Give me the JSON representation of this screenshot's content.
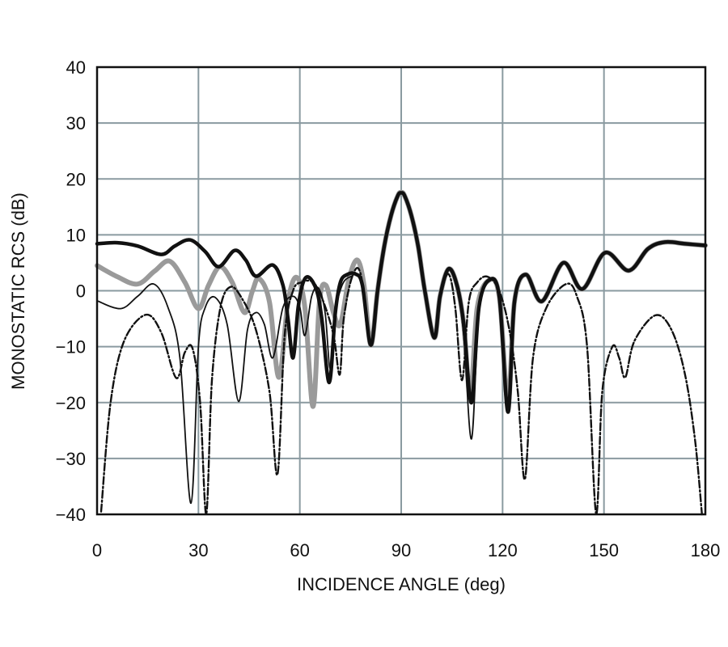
{
  "chart_data": {
    "type": "line",
    "title": "",
    "xlabel": "INCIDENCE ANGLE (deg)",
    "ylabel": "MONOSTATIC RCS (dB)",
    "xlim": [
      0,
      180
    ],
    "ylim": [
      -40,
      40
    ],
    "xticks": [
      0,
      30,
      60,
      90,
      120,
      150,
      180
    ],
    "yticks": [
      40,
      30,
      20,
      10,
      0,
      -10,
      -20,
      -30,
      -40
    ],
    "xtick_labels": [
      "0",
      "30",
      "60",
      "90",
      "120",
      "150",
      "180"
    ],
    "ytick_labels": [
      "40",
      "30",
      "20",
      "10",
      "0",
      "−10",
      "−20",
      "−30",
      "−40"
    ],
    "grid": true,
    "legend": "none",
    "grid_color": "#8a9aa0",
    "series": [
      {
        "style": "thick-solid",
        "color": "#9a9a9a",
        "points": [
          [
            0,
            4.5
          ],
          [
            6,
            2.5
          ],
          [
            12,
            1.2
          ],
          [
            17,
            3.5
          ],
          [
            21.5,
            5.3
          ],
          [
            26,
            1.5
          ],
          [
            30,
            -3.2
          ],
          [
            33,
            1
          ],
          [
            36.4,
            4.3
          ],
          [
            40,
            1.5
          ],
          [
            43.6,
            -3.9
          ],
          [
            46,
            0
          ],
          [
            47.9,
            2.2
          ],
          [
            51,
            -2
          ],
          [
            53.8,
            -15.5
          ],
          [
            56.5,
            -2
          ],
          [
            59,
            2.4
          ],
          [
            61.5,
            -3
          ],
          [
            63.9,
            -20.7
          ],
          [
            65.8,
            -2
          ],
          [
            67.7,
            1
          ],
          [
            70,
            -4
          ],
          [
            72,
            -6
          ],
          [
            74.5,
            2
          ],
          [
            77,
            5.5
          ],
          [
            79,
            1
          ],
          [
            81,
            -9.7
          ],
          [
            83,
            0
          ],
          [
            85,
            8
          ],
          [
            87,
            13.5
          ],
          [
            89,
            17
          ],
          [
            90,
            17.6
          ],
          [
            91,
            17
          ],
          [
            93,
            13.5
          ],
          [
            95,
            8
          ],
          [
            97,
            0
          ],
          [
            99.8,
            -8.4
          ],
          [
            101.5,
            -1
          ],
          [
            104,
            3.9
          ],
          [
            106.5,
            1
          ],
          [
            108.5,
            -6
          ],
          [
            110.5,
            -19
          ],
          [
            112.5,
            -3
          ],
          [
            116,
            1.9
          ],
          [
            119,
            -1
          ],
          [
            121.6,
            -20
          ],
          [
            123.5,
            -2
          ],
          [
            126.9,
            2.9
          ],
          [
            131.6,
            -1.9
          ],
          [
            138,
            5
          ],
          [
            143.6,
            0.3
          ],
          [
            150.3,
            6.8
          ],
          [
            157.3,
            3.6
          ],
          [
            163,
            7.5
          ],
          [
            168,
            8.7
          ],
          [
            174,
            8.4
          ],
          [
            180,
            8.1
          ]
        ]
      },
      {
        "style": "thick-solid",
        "color": "#111111",
        "points": [
          [
            0,
            8.4
          ],
          [
            6,
            8.6
          ],
          [
            12,
            8
          ],
          [
            19,
            6.5
          ],
          [
            23,
            8
          ],
          [
            27.5,
            9.1
          ],
          [
            32,
            7
          ],
          [
            36,
            4.3
          ],
          [
            40.7,
            7.2
          ],
          [
            44,
            5.5
          ],
          [
            47,
            2.6
          ],
          [
            52,
            4.6
          ],
          [
            55,
            1
          ],
          [
            56.5,
            -5
          ],
          [
            58,
            -12
          ],
          [
            59.5,
            -3
          ],
          [
            61,
            1.5
          ],
          [
            62.7,
            2.4
          ],
          [
            65,
            0
          ],
          [
            66.5,
            -5
          ],
          [
            68.7,
            -16.4
          ],
          [
            70.5,
            -4
          ],
          [
            72,
            1.5
          ],
          [
            74,
            2.9
          ],
          [
            76.5,
            3
          ],
          [
            78.5,
            1
          ],
          [
            81,
            -9.7
          ],
          [
            83,
            0
          ],
          [
            85,
            8
          ],
          [
            87,
            13.5
          ],
          [
            89,
            17
          ],
          [
            90,
            17.5
          ],
          [
            91,
            17
          ],
          [
            93,
            13.5
          ],
          [
            95,
            8
          ],
          [
            97,
            0
          ],
          [
            99.8,
            -8.4
          ],
          [
            101.5,
            -1
          ],
          [
            104,
            3.9
          ],
          [
            106.5,
            1
          ],
          [
            108.5,
            -6
          ],
          [
            110.8,
            -20
          ],
          [
            113,
            -3
          ],
          [
            116,
            1.9
          ],
          [
            119,
            -1
          ],
          [
            121.6,
            -21.7
          ],
          [
            123.5,
            -2
          ],
          [
            126.9,
            2.9
          ],
          [
            131.6,
            -1.9
          ],
          [
            138,
            5
          ],
          [
            143.6,
            0.3
          ],
          [
            150.3,
            6.8
          ],
          [
            157.3,
            3.6
          ],
          [
            163,
            7.5
          ],
          [
            168,
            8.7
          ],
          [
            174,
            8.4
          ],
          [
            180,
            8.1
          ]
        ]
      },
      {
        "style": "thin-solid",
        "color": "#111111",
        "points": [
          [
            0,
            -1.8
          ],
          [
            7,
            -3.2
          ],
          [
            12,
            -1
          ],
          [
            16.8,
            1.2
          ],
          [
            21,
            -3
          ],
          [
            24.5,
            -12
          ],
          [
            27.8,
            -38
          ],
          [
            30,
            -10
          ],
          [
            32,
            -3
          ],
          [
            35,
            -1.2
          ],
          [
            38.5,
            -6
          ],
          [
            41.9,
            -19.8
          ],
          [
            44.5,
            -7
          ],
          [
            47,
            -3.9
          ],
          [
            49.5,
            -6
          ],
          [
            52,
            -12
          ],
          [
            55,
            -3
          ],
          [
            58,
            -1
          ],
          [
            60,
            -3
          ],
          [
            61.5,
            -8
          ],
          [
            63.5,
            -1
          ],
          [
            65.5,
            0.5
          ],
          [
            67.5,
            -4
          ],
          [
            69,
            -14
          ],
          [
            70.5,
            -4
          ],
          [
            72.5,
            1
          ],
          [
            75,
            2.5
          ],
          [
            78,
            2
          ],
          [
            81,
            -9.7
          ],
          [
            83,
            0
          ],
          [
            85,
            8
          ],
          [
            87,
            13.5
          ],
          [
            89,
            17
          ],
          [
            90,
            17.5
          ],
          [
            91,
            17
          ],
          [
            93,
            13.5
          ],
          [
            95,
            8
          ],
          [
            97,
            0
          ],
          [
            99.8,
            -8.4
          ],
          [
            101.5,
            -1
          ],
          [
            104,
            3.9
          ],
          [
            106.5,
            1
          ],
          [
            108.5,
            -8
          ],
          [
            110.8,
            -26.5
          ],
          [
            113,
            -4
          ],
          [
            116,
            1.9
          ],
          [
            119,
            -1
          ],
          [
            121.6,
            -21.7
          ],
          [
            123.5,
            -2
          ],
          [
            126.9,
            2.9
          ],
          [
            131.6,
            -1.9
          ],
          [
            138,
            5
          ],
          [
            143.6,
            0.3
          ],
          [
            150.3,
            6.8
          ],
          [
            157.3,
            3.6
          ],
          [
            163,
            7.5
          ],
          [
            168,
            8.7
          ],
          [
            174,
            8.4
          ],
          [
            180,
            8.1
          ]
        ]
      },
      {
        "style": "dash-dot",
        "color": "#111111",
        "points": [
          [
            1.2,
            -39.5
          ],
          [
            4,
            -20
          ],
          [
            8,
            -9
          ],
          [
            14.4,
            -4.3
          ],
          [
            19,
            -7.5
          ],
          [
            23.4,
            -15.6
          ],
          [
            26,
            -11
          ],
          [
            28.3,
            -10.4
          ],
          [
            30.5,
            -20
          ],
          [
            32.3,
            -40
          ],
          [
            34,
            -16
          ],
          [
            36.5,
            -3
          ],
          [
            39.5,
            0.7
          ],
          [
            43,
            -1.5
          ],
          [
            47,
            -7
          ],
          [
            51,
            -18
          ],
          [
            53.4,
            -32.8
          ],
          [
            55.5,
            -8
          ],
          [
            58,
            0
          ],
          [
            60.5,
            1.5
          ],
          [
            64,
            1.5
          ],
          [
            67,
            -2
          ],
          [
            70,
            -8
          ],
          [
            71.8,
            -15
          ],
          [
            73,
            -5
          ],
          [
            75.5,
            2.5
          ],
          [
            78,
            3
          ],
          [
            81,
            -9.7
          ],
          [
            83,
            0
          ],
          [
            85,
            8
          ],
          [
            87,
            13.5
          ],
          [
            89,
            17
          ],
          [
            90,
            17.5
          ],
          [
            91,
            17
          ],
          [
            93,
            13.5
          ],
          [
            95,
            8
          ],
          [
            97,
            0
          ],
          [
            99.8,
            -8.4
          ],
          [
            101.5,
            -1
          ],
          [
            104,
            3
          ],
          [
            106,
            -3
          ],
          [
            108,
            -16
          ],
          [
            110,
            -2
          ],
          [
            112.5,
            1.5
          ],
          [
            115.6,
            2.5
          ],
          [
            119,
            0
          ],
          [
            122,
            -7
          ],
          [
            124.5,
            -18
          ],
          [
            126.6,
            -33.7
          ],
          [
            129,
            -12
          ],
          [
            133,
            -3
          ],
          [
            138.8,
            1.2
          ],
          [
            142,
            -1
          ],
          [
            145,
            -10
          ],
          [
            147.7,
            -40
          ],
          [
            149.5,
            -18
          ],
          [
            152.5,
            -10
          ],
          [
            154.5,
            -12
          ],
          [
            156.3,
            -15.5
          ],
          [
            159,
            -9
          ],
          [
            165.2,
            -4.4
          ],
          [
            170,
            -7
          ],
          [
            174,
            -15
          ],
          [
            177,
            -27
          ],
          [
            179,
            -40
          ]
        ]
      }
    ]
  }
}
